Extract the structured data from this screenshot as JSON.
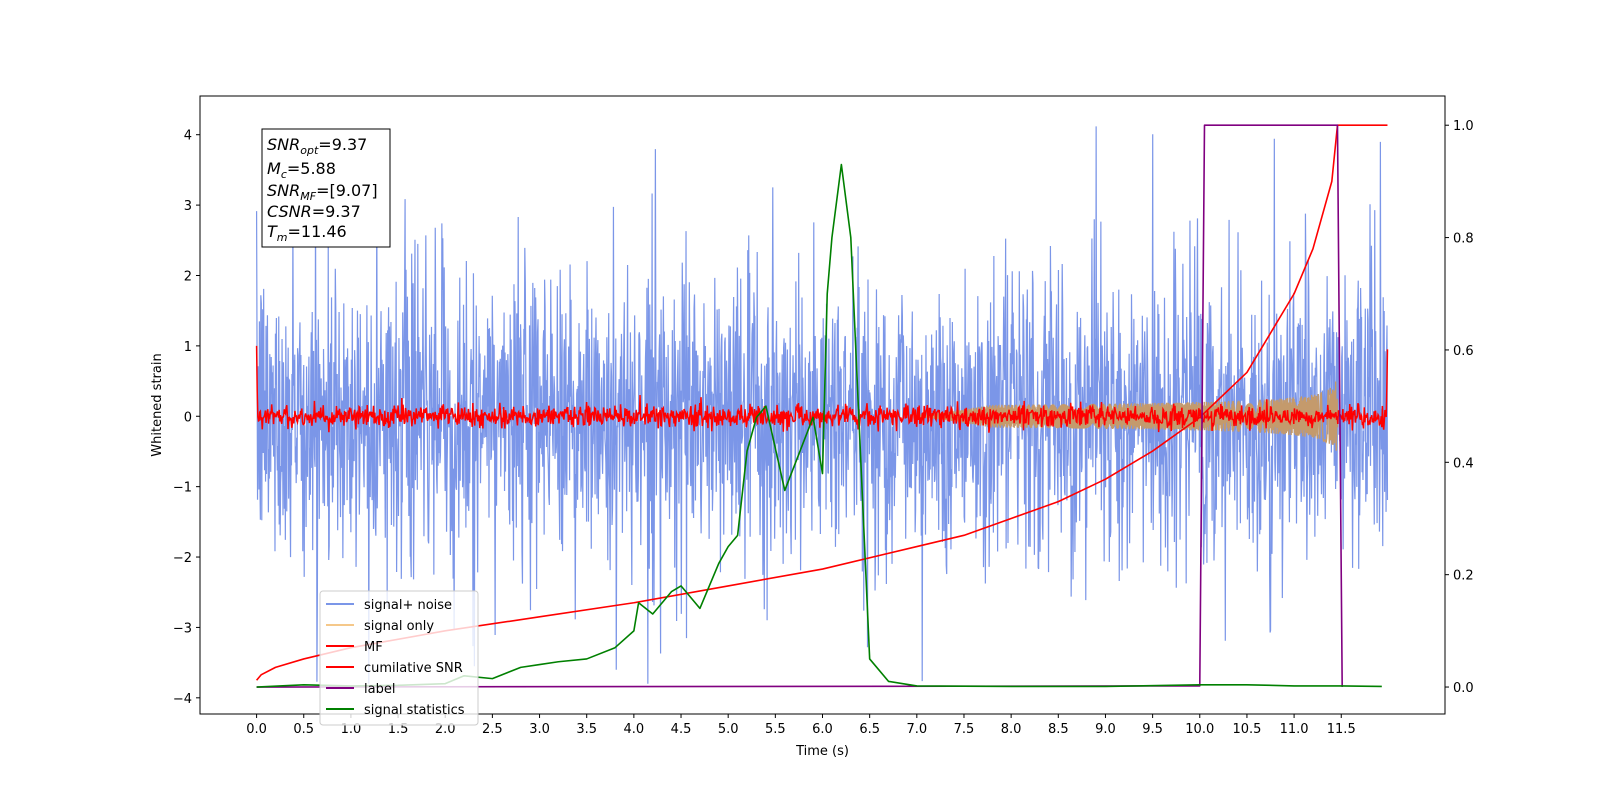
{
  "chart_data": {
    "type": "line",
    "xlabel": "Time (s)",
    "ylabel": "Whitened strain",
    "xlim": [
      -0.6,
      12.6
    ],
    "ylim_left": [
      -4.23,
      4.55
    ],
    "ylim_right": [
      -0.048,
      1.052
    ],
    "x_ticks": [
      0.0,
      0.5,
      1.0,
      1.5,
      2.0,
      2.5,
      3.0,
      3.5,
      4.0,
      4.5,
      5.0,
      5.5,
      6.0,
      6.5,
      7.0,
      7.5,
      8.0,
      8.5,
      9.0,
      9.5,
      10.0,
      10.5,
      11.0,
      11.5
    ],
    "x_tick_labels": [
      "0.0",
      "0.5",
      "1.0",
      "1.5",
      "2.0",
      "2.5",
      "3.0",
      "3.5",
      "4.0",
      "4.5",
      "5.0",
      "5.5",
      "6.0",
      "6.5",
      "7.0",
      "7.5",
      "8.0",
      "8.5",
      "9.0",
      "9.5",
      "10.0",
      "10.5",
      "11.0",
      "11.5"
    ],
    "y_left_ticks": [
      -4,
      -3,
      -2,
      -1,
      0,
      1,
      2,
      3,
      4
    ],
    "y_left_tick_labels": [
      "−4",
      "−3",
      "−2",
      "−1",
      "0",
      "1",
      "2",
      "3",
      "4"
    ],
    "y_right_ticks": [
      0.0,
      0.2,
      0.4,
      0.6,
      0.8,
      1.0
    ],
    "y_right_tick_labels": [
      "0.0",
      "0.2",
      "0.4",
      "0.6",
      "0.8",
      "1.0"
    ],
    "grid": false,
    "legend_position": "lower-left",
    "legend": [
      {
        "label": "signal+ noise",
        "color": "#7b96e8"
      },
      {
        "label": "signal only",
        "color": "#f5c88a"
      },
      {
        "label": "MF",
        "color": "#ff0000"
      },
      {
        "label": "cumilative SNR",
        "color": "#ff0000"
      },
      {
        "label": "label",
        "color": "#800080"
      },
      {
        "label": "signal statistics",
        "color": "#008000"
      }
    ],
    "annotation": {
      "SNR_opt": "9.37",
      "M_c": "5.88",
      "SNR_MF": "[9.07]",
      "CSNR": "9.37",
      "T_m": "11.46"
    },
    "series": [
      {
        "name": "signal+ noise",
        "axis": "left",
        "kind": "noise",
        "x_range": [
          0.0,
          11.99
        ],
        "mean": 0.0,
        "std": 1.0,
        "min": -3.8,
        "max": 4.15
      },
      {
        "name": "signal only",
        "axis": "left",
        "kind": "chirp",
        "x_range": [
          7.0,
          11.46
        ],
        "peak_amplitude": 0.6
      },
      {
        "name": "MF",
        "axis": "left",
        "kind": "noise",
        "x_range": [
          0.0,
          11.99
        ],
        "mean": 0.0,
        "std": 0.08,
        "endpoints": [
          1.0,
          0.95
        ]
      },
      {
        "name": "cumilative SNR",
        "axis": "right",
        "x": [
          0.0,
          0.05,
          0.2,
          0.5,
          1.0,
          2.0,
          3.0,
          4.0,
          5.0,
          6.0,
          7.0,
          7.5,
          8.0,
          8.5,
          9.0,
          9.5,
          10.0,
          10.5,
          11.0,
          11.2,
          11.4,
          11.46,
          11.99
        ],
        "y": [
          0.012,
          0.022,
          0.035,
          0.05,
          0.07,
          0.1,
          0.125,
          0.15,
          0.18,
          0.21,
          0.25,
          0.27,
          0.3,
          0.33,
          0.37,
          0.42,
          0.48,
          0.56,
          0.7,
          0.78,
          0.9,
          1.0,
          1.0
        ]
      },
      {
        "name": "label",
        "axis": "right",
        "x": [
          0.0,
          10.0,
          10.05,
          11.46,
          11.51
        ],
        "y": [
          0.0,
          0.002,
          1.0,
          1.0,
          0.0
        ]
      },
      {
        "name": "signal statistics",
        "axis": "right",
        "x": [
          0.0,
          0.5,
          1.0,
          1.5,
          2.0,
          2.2,
          2.5,
          2.8,
          3.0,
          3.2,
          3.5,
          3.8,
          4.0,
          4.05,
          4.2,
          4.4,
          4.5,
          4.7,
          4.9,
          5.0,
          5.1,
          5.2,
          5.3,
          5.4,
          5.6,
          5.9,
          6.0,
          6.05,
          6.1,
          6.2,
          6.3,
          6.5,
          6.7,
          7.0,
          8.0,
          9.0,
          10.0,
          10.5,
          11.0,
          11.5,
          11.93
        ],
        "y": [
          0.0,
          0.004,
          0.002,
          0.003,
          0.006,
          0.02,
          0.015,
          0.035,
          0.04,
          0.045,
          0.05,
          0.07,
          0.1,
          0.15,
          0.13,
          0.17,
          0.18,
          0.14,
          0.22,
          0.25,
          0.27,
          0.42,
          0.48,
          0.5,
          0.35,
          0.48,
          0.38,
          0.7,
          0.8,
          0.93,
          0.8,
          0.05,
          0.01,
          0.002,
          0.001,
          0.001,
          0.004,
          0.004,
          0.002,
          0.002,
          0.001
        ]
      }
    ]
  }
}
